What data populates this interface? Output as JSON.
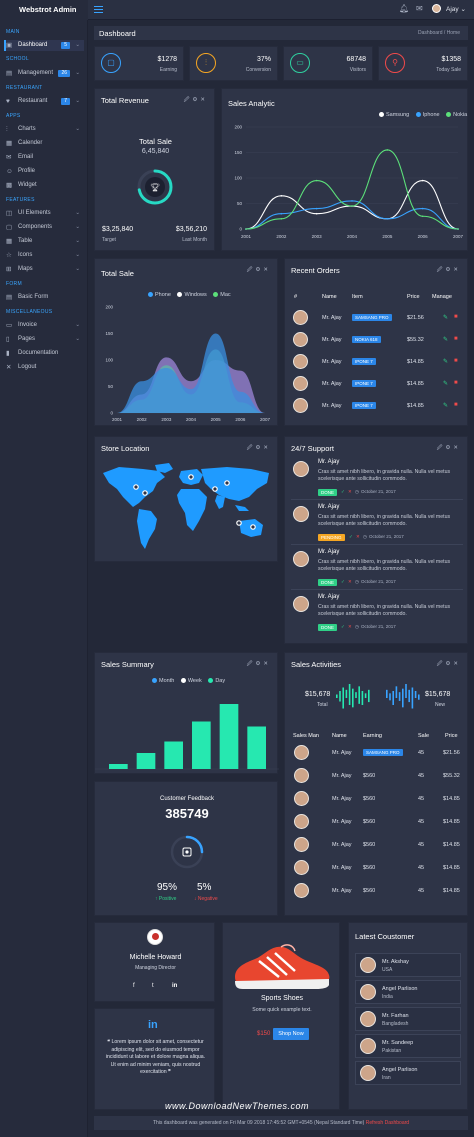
{
  "app": {
    "title": "Webstrot Admin",
    "user_name": "Ajay ⌄"
  },
  "sidebar": {
    "sections": {
      "main": "MAIN",
      "school": "SCHOOL",
      "restaurant": "RESTAURANT",
      "apps": "APPS",
      "features": "FEATURES",
      "form": "FORM",
      "misc": "MISCELLANEOUS"
    },
    "items": [
      {
        "label": "Dashboard",
        "icon": "dashboard-icon",
        "badge": "5"
      },
      {
        "label": "Management",
        "icon": "school-icon",
        "badge": "26"
      },
      {
        "label": "Restaurant",
        "icon": "restaurant-icon",
        "badge": "7"
      },
      {
        "label": "Charts",
        "icon": "chart-icon"
      },
      {
        "label": "Calender",
        "icon": "calendar-icon"
      },
      {
        "label": "Email",
        "icon": "email-icon"
      },
      {
        "label": "Profile",
        "icon": "profile-icon"
      },
      {
        "label": "Widget",
        "icon": "widget-icon"
      },
      {
        "label": "UI Elements",
        "icon": "ui-icon"
      },
      {
        "label": "Components",
        "icon": "components-icon"
      },
      {
        "label": "Table",
        "icon": "table-icon"
      },
      {
        "label": "Icons",
        "icon": "icons-icon"
      },
      {
        "label": "Maps",
        "icon": "map-icon"
      },
      {
        "label": "Basic Form",
        "icon": "form-icon"
      },
      {
        "label": "Invoice",
        "icon": "invoice-icon"
      },
      {
        "label": "Pages",
        "icon": "pages-icon"
      },
      {
        "label": "Documentation",
        "icon": "doc-icon"
      },
      {
        "label": "Logout",
        "icon": "logout-icon"
      }
    ]
  },
  "header": {
    "title": "Dashboard",
    "breadcrumb": "Dashboard  /  Home"
  },
  "stats": [
    {
      "value": "$1278",
      "label": "Earning",
      "color": "#38a3ff"
    },
    {
      "value": "37%",
      "label": "Conversion",
      "color": "#f5a623"
    },
    {
      "value": "68748",
      "label": "Visitors",
      "color": "#2fd0a0"
    },
    {
      "value": "$1358",
      "label": "Today Sale",
      "color": "#f04a4a"
    }
  ],
  "total_revenue": {
    "title": "Total Revenue",
    "subtitle": "Total Sale",
    "amount": "6,45,840",
    "target_value": "$3,25,840",
    "target_label": "Target",
    "last_value": "$3,56,210",
    "last_label": "Last Month",
    "progress": 0.72
  },
  "sales_analytic": {
    "title": "Sales Analytic"
  },
  "total_sale": {
    "title": "Total Sale"
  },
  "chart_data": [
    {
      "type": "line",
      "x": [
        "2001",
        "2002",
        "2003",
        "2004",
        "2005",
        "2006",
        "2007"
      ],
      "ylim": [
        0,
        200
      ],
      "yticks": [
        "0",
        "50",
        "100",
        "150",
        "200"
      ],
      "legend": "top-right",
      "series": [
        {
          "name": "Samsung",
          "color": "#ffffff",
          "values": [
            0,
            65,
            30,
            45,
            20,
            95,
            0
          ]
        },
        {
          "name": "Iphone",
          "color": "#38a3ff",
          "values": [
            0,
            30,
            40,
            55,
            20,
            40,
            0
          ]
        },
        {
          "name": "Nokia",
          "color": "#5ce07a",
          "values": [
            0,
            20,
            95,
            45,
            155,
            25,
            0
          ]
        }
      ]
    },
    {
      "type": "area",
      "x": [
        "2001",
        "2002",
        "2003",
        "2004",
        "2005",
        "2006",
        "2007"
      ],
      "ylim": [
        0,
        200
      ],
      "yticks": [
        "0",
        "50",
        "100",
        "150",
        "200"
      ],
      "legend": "top-center",
      "series": [
        {
          "name": "Phone",
          "color": "#38a3ff",
          "values": [
            0,
            60,
            85,
            45,
            150,
            40,
            0
          ]
        },
        {
          "name": "Windows",
          "color": "#ffffff",
          "values": [
            0,
            35,
            105,
            60,
            100,
            80,
            0
          ]
        },
        {
          "name": "Mac",
          "color": "#5ce07a",
          "values": [
            0,
            25,
            90,
            35,
            120,
            20,
            0
          ]
        }
      ]
    },
    {
      "type": "bar",
      "legend": "top-center",
      "series_names": [
        {
          "name": "Month",
          "color": "#38a3ff"
        },
        {
          "name": "Week",
          "color": "#ffffff"
        },
        {
          "name": "Day",
          "color": "#26e8b0"
        }
      ],
      "values": [
        10,
        32,
        55,
        95,
        130,
        85
      ],
      "ylim": [
        0,
        140
      ]
    },
    {
      "type": "bar",
      "values": [
        3,
        6,
        9,
        7,
        12,
        8,
        5,
        10,
        6,
        4,
        7
      ],
      "ylim": [
        0,
        12
      ]
    }
  ],
  "recent_orders": {
    "title": "Recent Orders",
    "columns": [
      "#",
      "Name",
      "Item",
      "Price",
      "Manage"
    ],
    "rows": [
      {
        "name": "Mr. Ajay",
        "item": "SAMSANG PRO",
        "price": "$21.56"
      },
      {
        "name": "Mr. Ajay",
        "item": "NOKIA 618",
        "price": "$55.32"
      },
      {
        "name": "Mr. Ajay",
        "item": "IPONE 7",
        "price": "$14.85"
      },
      {
        "name": "Mr. Ajay",
        "item": "IPONE 7",
        "price": "$14.85"
      },
      {
        "name": "Mr. Ajay",
        "item": "IPONE 7",
        "price": "$14.85"
      }
    ]
  },
  "store_location": {
    "title": "Store Location"
  },
  "support": {
    "title": "24/7 Support",
    "items": [
      {
        "name": "Mr. Ajay",
        "msg": "Cras sit amet nibh libero, in gravida nulla. Nulla vel metus scelerisque ante sollicitudin commodo.",
        "status": "DONE",
        "status_color": "#2fd087",
        "date": "October 21, 2017"
      },
      {
        "name": "Mr. Ajay",
        "msg": "Cras sit amet nibh libero, in gravida nulla. Nulla vel metus scelerisque ante sollicitudin commodo.",
        "status": "PENDING",
        "status_color": "#f5a623",
        "date": "October 21, 2017"
      },
      {
        "name": "Mr. Ajay",
        "msg": "Cras sit amet nibh libero, in gravida nulla. Nulla vel metus scelerisque ante sollicitudin commodo.",
        "status": "DONE",
        "status_color": "#2fd087",
        "date": "October 21, 2017"
      },
      {
        "name": "Mr. Ajay",
        "msg": "Cras sit amet nibh libero, in gravida nulla. Nulla vel metus scelerisque ante sollicitudin commodo.",
        "status": "DONE",
        "status_color": "#2fd087",
        "date": "October 21, 2017"
      }
    ]
  },
  "sales_summary": {
    "title": "Sales Summary"
  },
  "sales_activities": {
    "title": "Sales Activities",
    "total_value": "$15,678",
    "total_label": "Total",
    "new_value": "$15,678",
    "new_label": "New",
    "columns": [
      "Sales Man",
      "Name",
      "Earning",
      "Sale",
      "Price"
    ],
    "rows": [
      {
        "name": "Mr. Ajay",
        "earning": "SAMSANG PRO",
        "earning_tag": true,
        "sale": "45",
        "price": "$21.56"
      },
      {
        "name": "Mr. Ajay",
        "earning": "$560",
        "earning_tag": false,
        "sale": "45",
        "price": "$55.32"
      },
      {
        "name": "Mr. Ajay",
        "earning": "$560",
        "earning_tag": false,
        "sale": "45",
        "price": "$14.85"
      },
      {
        "name": "Mr. Ajay",
        "earning": "$560",
        "earning_tag": false,
        "sale": "45",
        "price": "$14.85"
      },
      {
        "name": "Mr. Ajay",
        "earning": "$560",
        "earning_tag": false,
        "sale": "45",
        "price": "$14.85"
      },
      {
        "name": "Mr. Ajay",
        "earning": "$560",
        "earning_tag": false,
        "sale": "45",
        "price": "$14.85"
      },
      {
        "name": "Mr. Ajay",
        "earning": "$560",
        "earning_tag": false,
        "sale": "45",
        "price": "$14.85"
      }
    ]
  },
  "feedback": {
    "title": "Customer Feedback",
    "value": "385749",
    "positive_value": "95%",
    "positive_label": "Positive",
    "negative_value": "5%",
    "negative_label": "Negative"
  },
  "profile": {
    "name": "Michelle Howard",
    "role": "Managing Director"
  },
  "linkedin": {
    "quote": "Lorem ipsum dolor sit amet, consectetur adipiscing elit, sed do eiusmod tempor incididunt ut labore et dolore magna aliqua. Ut enim ad minim veniam, quis nostrud exercitation"
  },
  "product": {
    "name": "Sports Shoes",
    "desc": "Some quick example text.",
    "price": "$150",
    "button": "Shop Now"
  },
  "latest_customer": {
    "title": "Latest Coustomer",
    "items": [
      {
        "name": "Mr. Akshay",
        "country": "USA"
      },
      {
        "name": "Angel Parlison",
        "country": "India"
      },
      {
        "name": "Mr. Farhan",
        "country": "Bangladesh"
      },
      {
        "name": "Mr. Sandeep",
        "country": "Pakistan"
      },
      {
        "name": "Angel Parlison",
        "country": "Iran"
      }
    ]
  },
  "footer": {
    "text": "This dashboard was generated on Fri Mar 09 2018 17:45:52 GMT+0545 (Nepal Standard Time)",
    "link": "Refresh Dashboard"
  },
  "watermark": "www.DownloadNewThemes.com",
  "colors": {
    "accent": "#38a3ff",
    "bg": "#232838",
    "panel": "#2e3447"
  }
}
